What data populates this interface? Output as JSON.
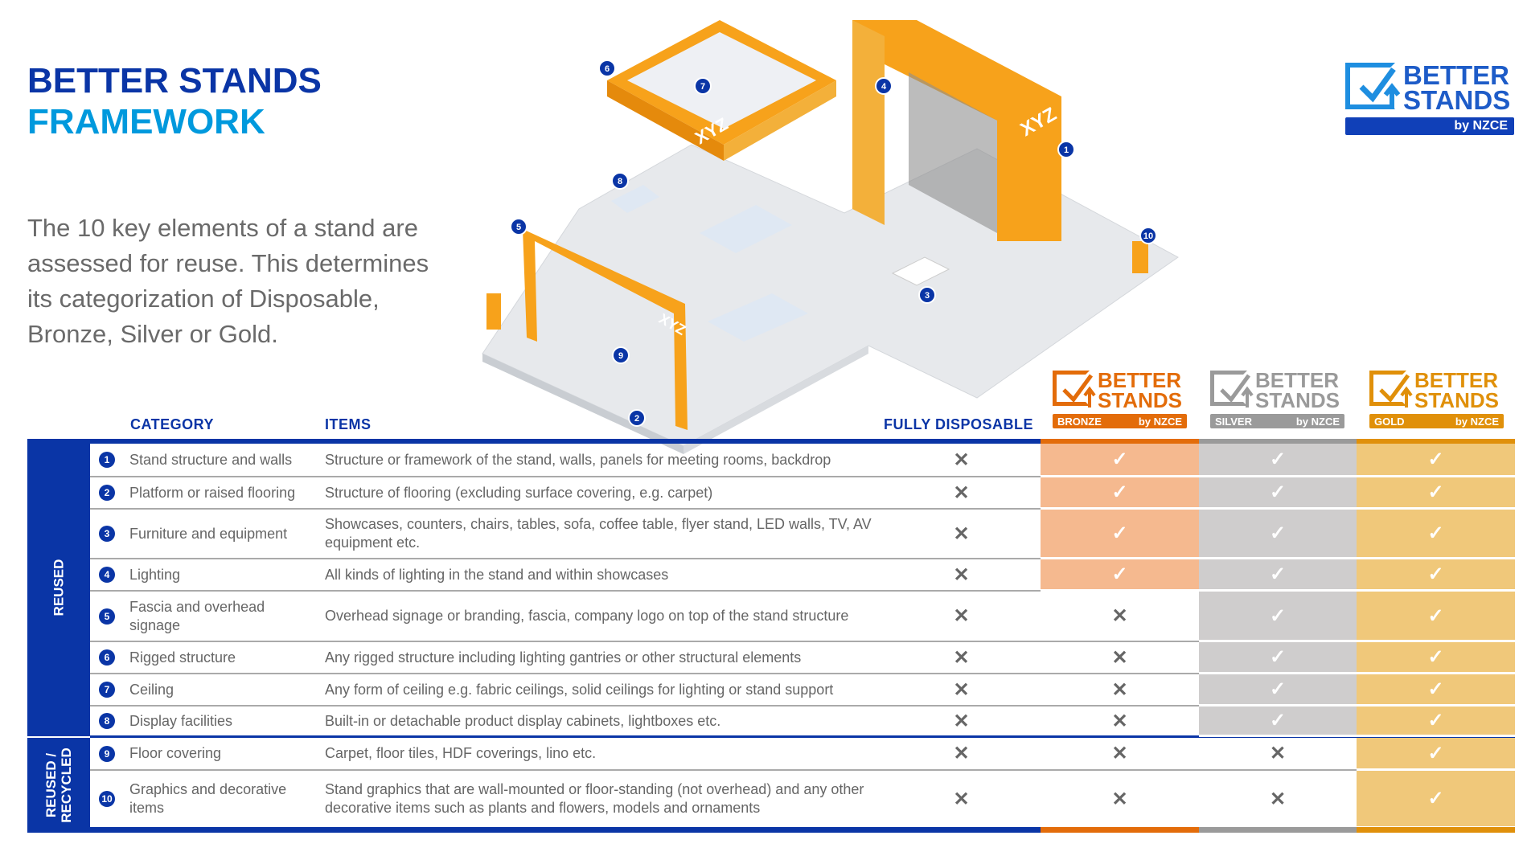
{
  "header": {
    "title_line1": "BETTER STANDS",
    "title_line2": "FRAMEWORK",
    "intro": "The 10 key elements of a stand are assessed for reuse. This determines its categorization of Disposable, Bronze, Silver or Gold."
  },
  "logo": {
    "line1": "BETTER",
    "line2": "STANDS",
    "byline": "by NZCE",
    "color": "#1e5cc8"
  },
  "illustration": {
    "brand_text": "XYZ",
    "markers": [
      "1",
      "2",
      "3",
      "4",
      "5",
      "6",
      "7",
      "8",
      "9",
      "10"
    ]
  },
  "tiers": [
    {
      "name": "BRONZE",
      "line1": "BETTER",
      "line2": "STANDS",
      "byline": "by NZCE",
      "color": "#e36c0a",
      "fill": "#f5b98f"
    },
    {
      "name": "SILVER",
      "line1": "BETTER",
      "line2": "STANDS",
      "byline": "by NZCE",
      "color": "#9a9a9a",
      "fill": "#cfcdcd"
    },
    {
      "name": "GOLD",
      "line1": "BETTER",
      "line2": "STANDS",
      "byline": "by NZCE",
      "color": "#e0900a",
      "fill": "#f0c87a"
    }
  ],
  "table": {
    "headers": {
      "category": "CATEGORY",
      "items": "ITEMS",
      "disposable": "FULLY DISPOSABLE"
    },
    "groups": [
      {
        "label": "REUSED",
        "rows": 8
      },
      {
        "label": "REUSED / RECYCLED",
        "rows": 2
      }
    ],
    "symbols": {
      "no": "✕",
      "yes": "✓"
    },
    "rows": [
      {
        "n": "1",
        "category": "Stand structure and walls",
        "items": "Structure or framework of the stand, walls, panels for meeting rooms, backdrop",
        "disposable": false,
        "bronze": true,
        "silver": true,
        "gold": true
      },
      {
        "n": "2",
        "category": "Platform or raised flooring",
        "items": "Structure of flooring (excluding surface covering, e.g. carpet)",
        "disposable": false,
        "bronze": true,
        "silver": true,
        "gold": true
      },
      {
        "n": "3",
        "category": "Furniture and equipment",
        "items": "Showcases, counters, chairs, tables, sofa, coffee table, flyer stand, LED walls, TV, AV equipment etc.",
        "disposable": false,
        "bronze": true,
        "silver": true,
        "gold": true
      },
      {
        "n": "4",
        "category": "Lighting",
        "items": "All kinds of lighting in the stand and within showcases",
        "disposable": false,
        "bronze": true,
        "silver": true,
        "gold": true
      },
      {
        "n": "5",
        "category": "Fascia and overhead signage",
        "items": "Overhead signage or branding, fascia, company logo on top of the stand structure",
        "disposable": false,
        "bronze": false,
        "silver": true,
        "gold": true
      },
      {
        "n": "6",
        "category": "Rigged structure",
        "items": "Any rigged structure including lighting gantries or other structural elements",
        "disposable": false,
        "bronze": false,
        "silver": true,
        "gold": true
      },
      {
        "n": "7",
        "category": "Ceiling",
        "items": "Any form of ceiling e.g. fabric ceilings, solid ceilings for lighting or stand support",
        "disposable": false,
        "bronze": false,
        "silver": true,
        "gold": true
      },
      {
        "n": "8",
        "category": "Display facilities",
        "items": "Built-in or detachable product display cabinets, lightboxes etc.",
        "disposable": false,
        "bronze": false,
        "silver": true,
        "gold": true
      },
      {
        "n": "9",
        "category": "Floor covering",
        "items": "Carpet, floor tiles, HDF coverings, lino etc.",
        "disposable": false,
        "bronze": false,
        "silver": false,
        "gold": true
      },
      {
        "n": "10",
        "category": "Graphics and decorative items",
        "items": "Stand graphics that are wall-mounted or floor-standing (not overhead) and any other decorative items such as plants and flowers, models and ornaments",
        "disposable": false,
        "bronze": false,
        "silver": false,
        "gold": true
      }
    ]
  },
  "colors": {
    "blue": "#0a35a6",
    "light_blue": "#0099dd"
  }
}
